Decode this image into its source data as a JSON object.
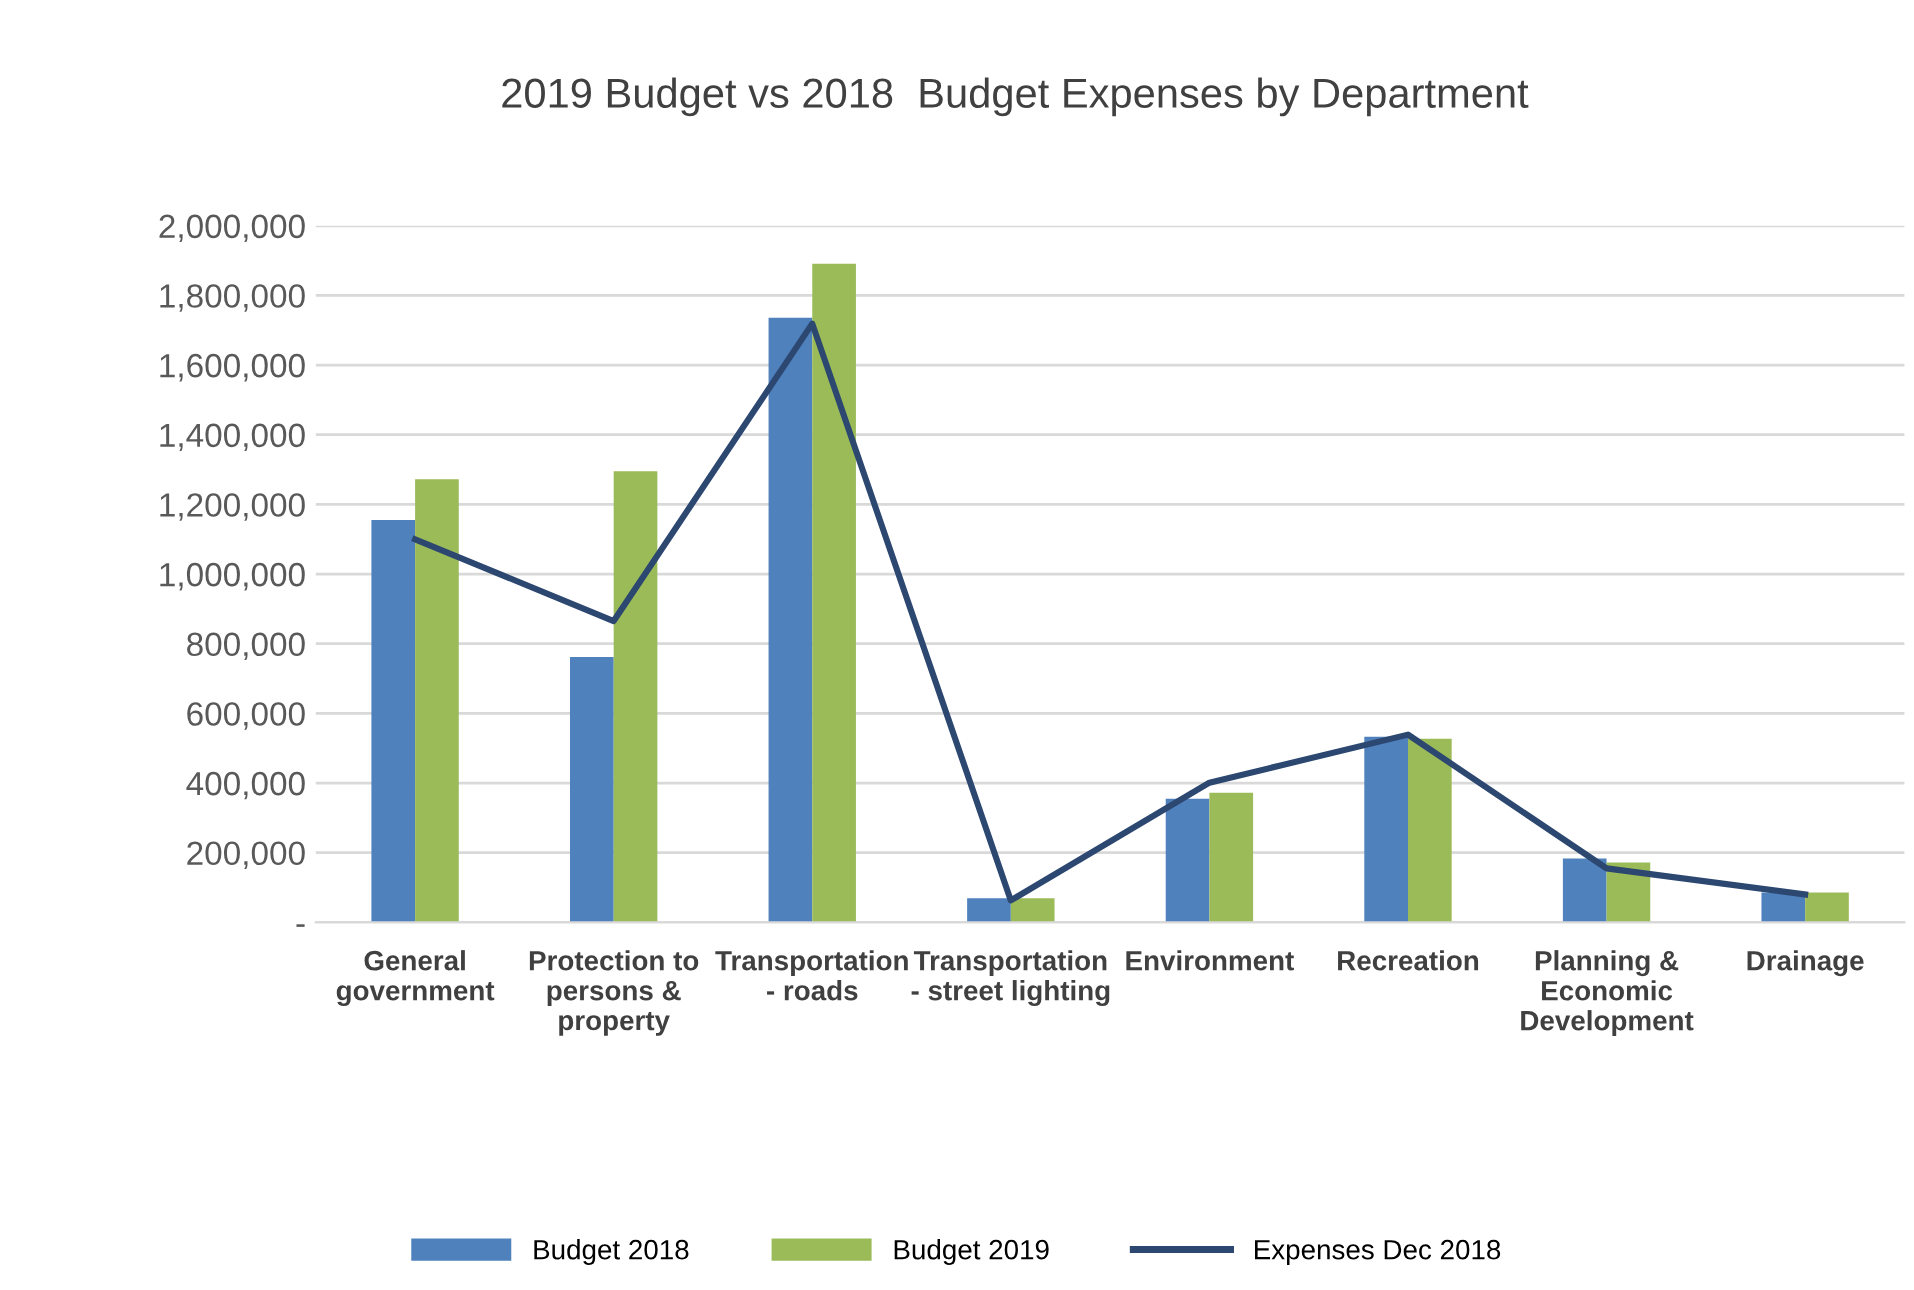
{
  "chart_data": {
    "type": "bar",
    "title": "2019 Budget vs 2018  Budget Expenses by Department",
    "categories": [
      "General\ngovernment",
      "Protection to\npersons &\nproperty",
      "Transportation\n- roads",
      "Transportation\n- street lighting",
      "Environment",
      "Recreation",
      "Planning &\nEconomic\nDevelopment",
      "Drainage"
    ],
    "series": [
      {
        "name": "Budget 2018",
        "color": "#4f81bd",
        "values": [
          1155000,
          762000,
          1736000,
          69000,
          355000,
          533000,
          183000,
          86000
        ]
      },
      {
        "name": "Budget 2019",
        "color": "#9bbb59",
        "values": [
          1272000,
          1295000,
          1891000,
          69000,
          372000,
          527000,
          172000,
          86000
        ]
      },
      {
        "name": "Expenses Dec 2018",
        "type": "line",
        "color": "#2c4770",
        "values": [
          1100000,
          865000,
          1719000,
          63000,
          401000,
          539000,
          155000,
          80000
        ]
      }
    ],
    "ylim": [
      0,
      2000000
    ],
    "yticks": [
      {
        "value": 0,
        "label": "-"
      },
      {
        "value": 200000,
        "label": "200,000"
      },
      {
        "value": 400000,
        "label": "400,000"
      },
      {
        "value": 600000,
        "label": "600,000"
      },
      {
        "value": 800000,
        "label": "800,000"
      },
      {
        "value": 1000000,
        "label": "1,000,000"
      },
      {
        "value": 1200000,
        "label": "1,200,000"
      },
      {
        "value": 1400000,
        "label": "1,400,000"
      },
      {
        "value": 1600000,
        "label": "1,600,000"
      },
      {
        "value": 1800000,
        "label": "1,800,000"
      },
      {
        "value": 2000000,
        "label": "2,000,000"
      }
    ],
    "grid": "y",
    "legend": "bottom",
    "marker": "none",
    "line_style": "solid"
  }
}
